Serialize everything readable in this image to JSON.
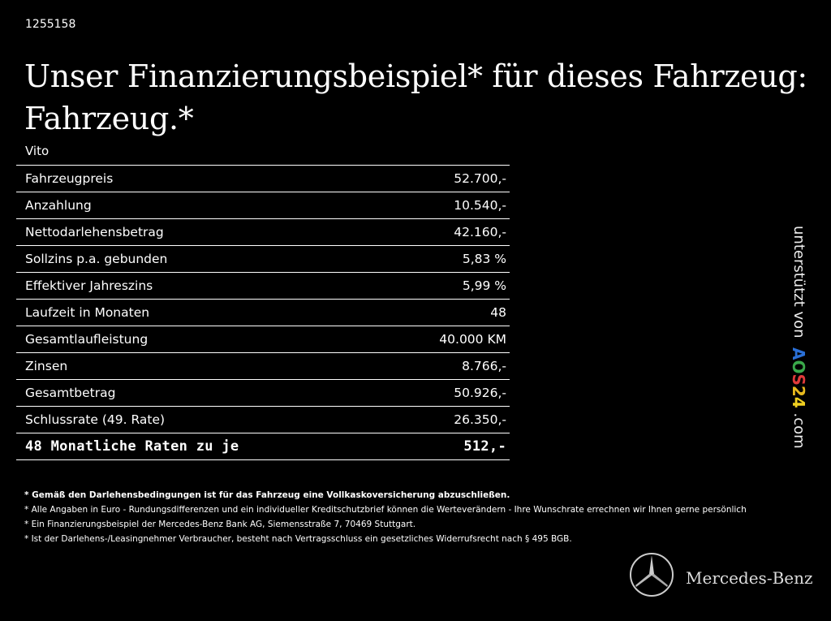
{
  "id_number": "1255158",
  "title_line1": "Unser Finanzierungsbeispiel* für dieses Fahrzeug:",
  "title_line2": "Fahrzeug.*",
  "model": "Vito",
  "rows": [
    {
      "label": "Fahrzeugpreis",
      "value": "52.700,-"
    },
    {
      "label": "Anzahlung",
      "value": "10.540,-"
    },
    {
      "label": "Nettodarlehensbetrag",
      "value": "42.160,-"
    },
    {
      "label": "Sollzins p.a. gebunden",
      "value": "5,83 %"
    },
    {
      "label": "Effektiver Jahreszins",
      "value": "5,99 %"
    },
    {
      "label": "Laufzeit in Monaten",
      "value": "48"
    },
    {
      "label": "Gesamtlaufleistung",
      "value": "40.000 KM"
    },
    {
      "label": "Zinsen",
      "value": "8.766,-"
    },
    {
      "label": "Gesamtbetrag",
      "value": "50.926,-"
    },
    {
      "label": "Schlussrate (49. Rate)",
      "value": "26.350,-"
    },
    {
      "label": "48 Monatliche Raten zu je",
      "value": "512,-"
    }
  ],
  "notes": [
    "* Gemäß den Darlehensbedingungen ist für das Fahrzeug eine Vollkaskoversicherung abzuschließen.",
    "* Alle Angaben in Euro - Rundungsdifferenzen und ein individueller Kreditschutzbrief können die Werteverändern - Ihre Wunschrate errechnen wir Ihnen gerne persönlich",
    "* Ein Finanzierungsbeispiel der Mercedes-Benz Bank AG, Siemensstraße 7, 70469 Stuttgart.",
    "* Ist der Darlehens-/Leasingnehmer Verbraucher, besteht nach Vertragsschluss ein gesetzliches Widerrufsrecht nach § 495 BGB."
  ],
  "sponsor": {
    "prefix": "unterstützt von",
    "brand_letters": [
      "A",
      "O",
      "S",
      "2",
      "4"
    ],
    "brand_colors": [
      "#2a6fd6",
      "#3aa84a",
      "#e03a3a",
      "#e6b81e",
      "#f0d020"
    ],
    "suffix": ".com"
  },
  "logo": {
    "text": "Mercedes-Benz"
  }
}
